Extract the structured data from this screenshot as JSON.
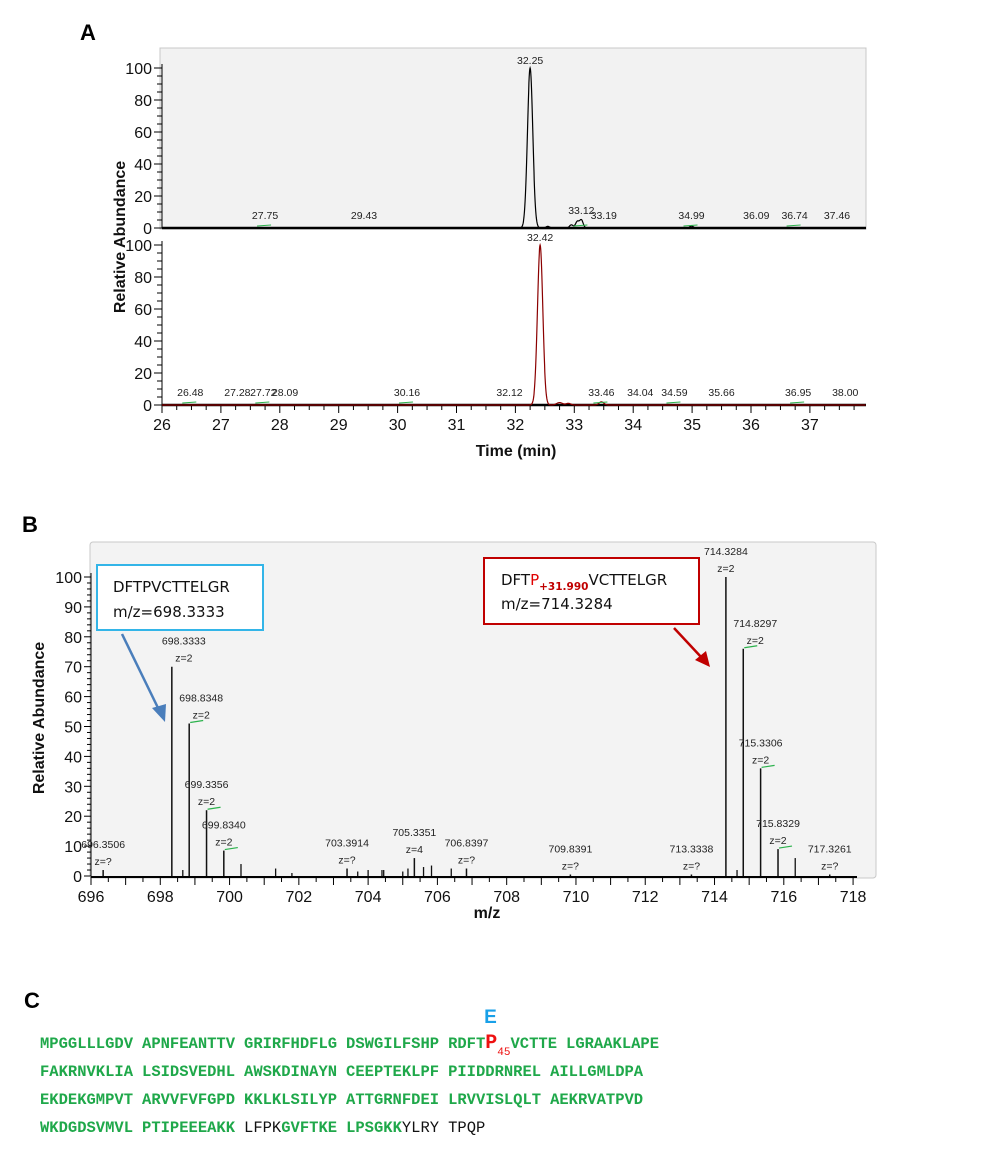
{
  "panel_labels": {
    "a": "A",
    "b": "B",
    "c": "C"
  },
  "chart_data": [
    {
      "type": "line",
      "id": "chromatogram-top",
      "color": "#000000",
      "ylabel": "Relative Abundance",
      "xlim": [
        26,
        37.95
      ],
      "ylim": [
        0,
        100
      ],
      "yticks": [
        0,
        20,
        40,
        60,
        80,
        100
      ],
      "peaks": [
        {
          "rt": 32.25,
          "height": 100,
          "sigma": 0.045
        },
        {
          "rt": 32.55,
          "height": 1,
          "sigma": 0.03
        },
        {
          "rt": 32.95,
          "height": 2,
          "sigma": 0.03
        },
        {
          "rt": 33.05,
          "height": 4,
          "sigma": 0.03
        },
        {
          "rt": 33.12,
          "height": 5,
          "sigma": 0.03
        },
        {
          "rt": 34.99,
          "height": 1.2,
          "sigma": 0.03
        }
      ],
      "labels": [
        {
          "text": "32.25",
          "rt": 32.25,
          "height": 100
        },
        {
          "text": "27.75",
          "rt": 27.75,
          "height": 0
        },
        {
          "text": "29.43",
          "rt": 29.43,
          "height": 0
        },
        {
          "text": "33.12",
          "rt": 33.12,
          "height": 5
        },
        {
          "text": "33.19",
          "rt": 33.5,
          "height": 0
        },
        {
          "text": "34.99",
          "rt": 34.99,
          "height": 1
        },
        {
          "text": "36.09",
          "rt": 36.09,
          "height": 0
        },
        {
          "text": "36.74",
          "rt": 36.74,
          "height": 0
        },
        {
          "text": "37.46",
          "rt": 37.46,
          "height": 0
        }
      ]
    },
    {
      "type": "line",
      "id": "chromatogram-bottom",
      "color": "#8b0000",
      "xlabel": "Time (min)",
      "xlim": [
        26,
        37.95
      ],
      "ylim": [
        0,
        100
      ],
      "xticks": [
        26,
        27,
        28,
        29,
        30,
        31,
        32,
        33,
        34,
        35,
        36,
        37
      ],
      "yticks": [
        0,
        20,
        40,
        60,
        80,
        100
      ],
      "peaks": [
        {
          "rt": 32.42,
          "height": 100,
          "sigma": 0.045
        },
        {
          "rt": 32.75,
          "height": 1.5,
          "sigma": 0.05
        },
        {
          "rt": 32.9,
          "height": 1,
          "sigma": 0.04
        },
        {
          "rt": 33.46,
          "height": 2,
          "sigma": 0.04
        }
      ],
      "labels": [
        {
          "text": "32.42",
          "rt": 32.42,
          "height": 100
        },
        {
          "text": "26.48",
          "rt": 26.48,
          "height": 0
        },
        {
          "text": "27.28",
          "rt": 27.28,
          "height": 0
        },
        {
          "text": "27.72",
          "rt": 27.72,
          "height": 0
        },
        {
          "text": "28.09",
          "rt": 28.09,
          "height": 0
        },
        {
          "text": "30.16",
          "rt": 30.16,
          "height": 0
        },
        {
          "text": "32.12",
          "rt": 31.9,
          "height": 0
        },
        {
          "text": "33.46",
          "rt": 33.46,
          "height": 2
        },
        {
          "text": "34.04",
          "rt": 34.12,
          "height": 0
        },
        {
          "text": "34.59",
          "rt": 34.7,
          "height": 0
        },
        {
          "text": "35.66",
          "rt": 35.5,
          "height": 0
        },
        {
          "text": "36.95",
          "rt": 36.8,
          "height": 0
        },
        {
          "text": "38.00",
          "rt": 37.6,
          "height": 0
        }
      ]
    },
    {
      "type": "bar",
      "id": "mass-spectrum",
      "xlabel": "m/z",
      "ylabel": "Relative Abundance",
      "xlim": [
        696,
        718.4
      ],
      "ylim": [
        0,
        100
      ],
      "xticks": [
        696,
        698,
        700,
        702,
        704,
        706,
        708,
        710,
        712,
        714,
        716,
        718
      ],
      "yticks": [
        0,
        10,
        20,
        30,
        40,
        50,
        60,
        70,
        80,
        90,
        100
      ],
      "labeled_peaks": [
        {
          "mz": 696.3506,
          "intensity": 2,
          "label": "696.3506",
          "z": "z=?"
        },
        {
          "mz": 698.3333,
          "intensity": 70,
          "label": "698.3333",
          "z": "z=2"
        },
        {
          "mz": 698.8348,
          "intensity": 51,
          "label": "698.8348",
          "z": "z=2"
        },
        {
          "mz": 699.3356,
          "intensity": 22,
          "label": "699.3356",
          "z": "z=2"
        },
        {
          "mz": 699.834,
          "intensity": 8.5,
          "label": "699.8340",
          "z": "z=2"
        },
        {
          "mz": 703.3914,
          "intensity": 2.5,
          "label": "703.3914",
          "z": "z=?"
        },
        {
          "mz": 705.3351,
          "intensity": 6,
          "label": "705.3351",
          "z": "z=4"
        },
        {
          "mz": 706.8397,
          "intensity": 2.5,
          "label": "706.8397",
          "z": "z=?"
        },
        {
          "mz": 709.8391,
          "intensity": 0.5,
          "label": "709.8391",
          "z": "z=?"
        },
        {
          "mz": 713.3338,
          "intensity": 0.5,
          "label": "713.3338",
          "z": "z=?"
        },
        {
          "mz": 714.3284,
          "intensity": 100,
          "label": "714.3284",
          "z": "z=2"
        },
        {
          "mz": 714.8297,
          "intensity": 76,
          "label": "714.8297",
          "z": "z=2"
        },
        {
          "mz": 715.3306,
          "intensity": 36,
          "label": "715.3306",
          "z": "z=2"
        },
        {
          "mz": 715.8329,
          "intensity": 9,
          "label": "715.8329",
          "z": "z=2"
        },
        {
          "mz": 717.3261,
          "intensity": 0.5,
          "label": "717.3261",
          "z": "z=?"
        }
      ],
      "minor_peaks": [
        {
          "mz": 698.65,
          "intensity": 2
        },
        {
          "mz": 700.33,
          "intensity": 4
        },
        {
          "mz": 701.33,
          "intensity": 2.5
        },
        {
          "mz": 701.8,
          "intensity": 1
        },
        {
          "mz": 703.7,
          "intensity": 1.5
        },
        {
          "mz": 704.0,
          "intensity": 2
        },
        {
          "mz": 704.4,
          "intensity": 2
        },
        {
          "mz": 704.45,
          "intensity": 2
        },
        {
          "mz": 705.0,
          "intensity": 1.5
        },
        {
          "mz": 705.15,
          "intensity": 2.5
        },
        {
          "mz": 705.6,
          "intensity": 3
        },
        {
          "mz": 705.83,
          "intensity": 3.5
        },
        {
          "mz": 706.4,
          "intensity": 2.5
        },
        {
          "mz": 714.65,
          "intensity": 2
        },
        {
          "mz": 716.33,
          "intensity": 6
        }
      ],
      "annotations": [
        {
          "peptide": "DFTPVCTTELGR",
          "mz_text": "m/z=698.3333",
          "color": "#33b5e8",
          "arrow_color": "#4a7ebb"
        },
        {
          "peptide_prefix": "DFT",
          "mod_residue": "P",
          "mod_mass": "+31.990",
          "peptide_suffix": "VCTTELGR",
          "mz_text": "m/z=714.3284",
          "color": "#c00000",
          "arrow_color": "#c00000"
        }
      ]
    }
  ],
  "panel_c": {
    "rows": [
      [
        [
          {
            "text": "MPGGLLLGDV",
            "style": "green"
          }
        ],
        [
          {
            "text": "APNFEANTTV",
            "style": "green"
          }
        ],
        [
          {
            "text": "GRIRFHDFLG",
            "style": "green"
          }
        ],
        [
          {
            "text": "DSWGILFSHP",
            "style": "green"
          }
        ],
        [
          {
            "text": "RDFT",
            "style": "green"
          },
          {
            "text": "P",
            "style": "mod"
          },
          {
            "text": "45",
            "style": "sub"
          },
          {
            "text": "VCTTE",
            "style": "green"
          }
        ],
        [
          {
            "text": "LGRAAKLAPE",
            "style": "green"
          }
        ]
      ],
      [
        [
          {
            "text": "FAKRNVKLIA",
            "style": "green"
          }
        ],
        [
          {
            "text": "LSIDSVEDHL",
            "style": "green"
          }
        ],
        [
          {
            "text": "AWSKDINAYN",
            "style": "green"
          }
        ],
        [
          {
            "text": "CEEPTEKLPF",
            "style": "green"
          }
        ],
        [
          {
            "text": "PIIDDRNREL",
            "style": "green"
          }
        ],
        [
          {
            "text": "AILLGMLDPA",
            "style": "green"
          }
        ]
      ],
      [
        [
          {
            "text": "EKDEKGMPVT",
            "style": "green"
          }
        ],
        [
          {
            "text": "ARVVFVFGPD",
            "style": "green"
          }
        ],
        [
          {
            "text": "KKLKLSILYP",
            "style": "green"
          }
        ],
        [
          {
            "text": "ATTGRNFDEI",
            "style": "green"
          }
        ],
        [
          {
            "text": "LRVVISLQLT",
            "style": "green"
          }
        ],
        [
          {
            "text": "AEKRVATPVD",
            "style": "green"
          }
        ]
      ],
      [
        [
          {
            "text": "WKDGDSVMVL",
            "style": "green"
          }
        ],
        [
          {
            "text": "PTIPEEEAKK",
            "style": "green"
          }
        ],
        [
          {
            "text": "LFPK",
            "style": "black"
          },
          {
            "text": "GVFTKE",
            "style": "green"
          }
        ],
        [
          {
            "text": "LPSGKK",
            "style": "green"
          },
          {
            "text": "YLRY",
            "style": "black"
          }
        ],
        [
          {
            "text": "TPQP",
            "style": "black"
          }
        ]
      ]
    ],
    "substitution": {
      "text": "E",
      "row": 0,
      "group": 4,
      "color": "#19a0e8"
    }
  }
}
